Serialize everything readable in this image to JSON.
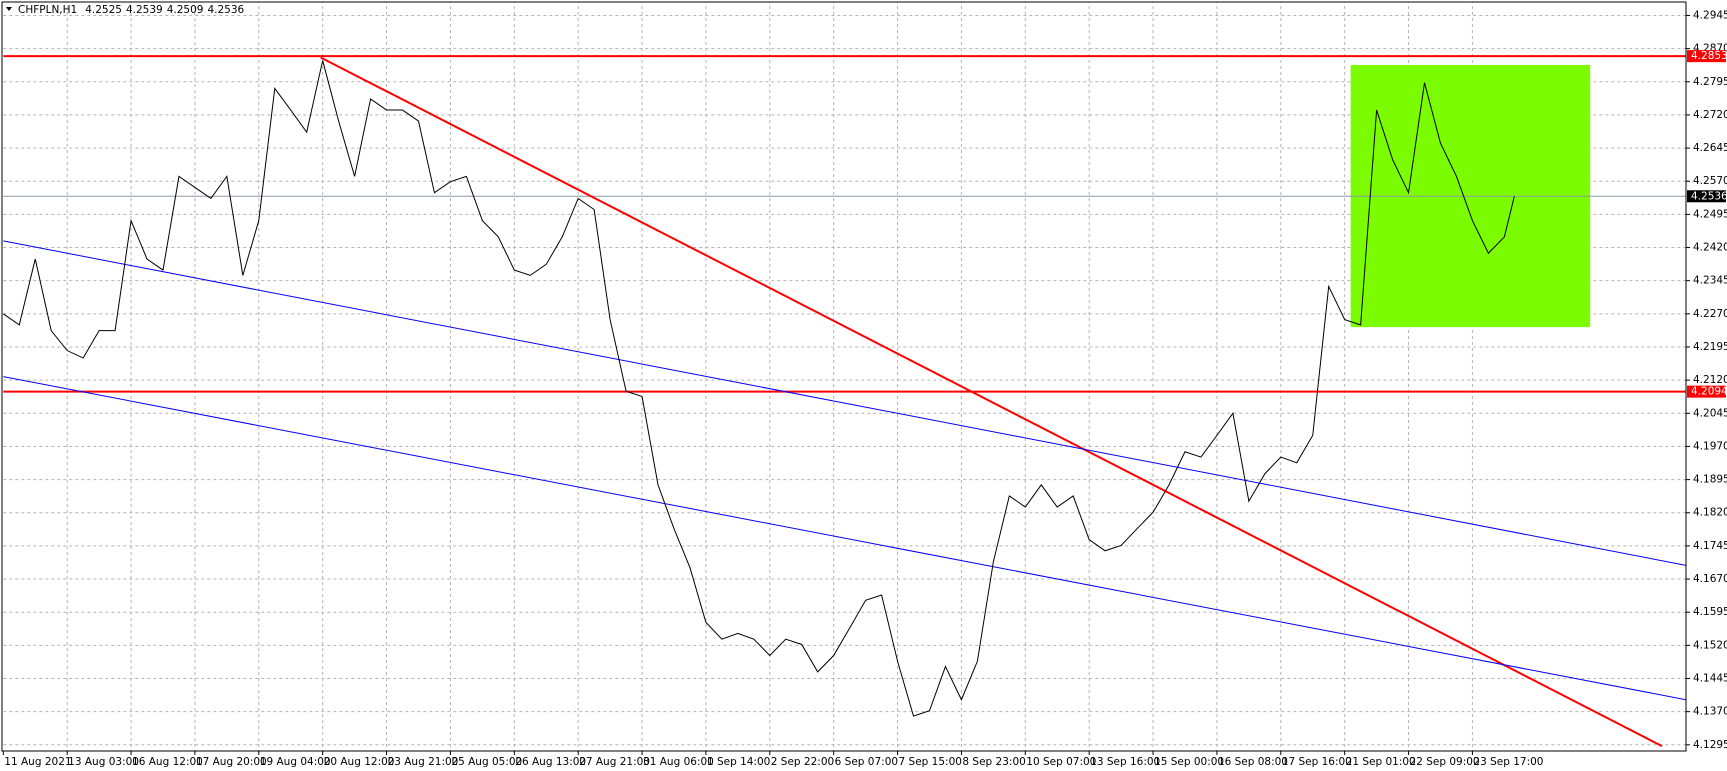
{
  "chart_data": {
    "type": "line",
    "title": "CHFPLN,H1",
    "ohlc": [
      4.2525,
      4.2539,
      4.2509,
      4.2536
    ],
    "x": [
      0,
      8,
      16,
      24,
      32,
      40,
      48,
      56,
      64,
      72,
      80,
      88,
      96,
      104,
      112,
      120,
      128,
      136,
      144,
      152,
      160,
      168,
      176,
      184,
      192,
      200,
      208,
      216,
      224,
      232,
      240,
      248,
      256,
      264,
      272,
      280,
      288,
      296,
      304,
      312,
      320,
      328,
      336,
      344,
      352,
      360,
      368,
      376,
      384,
      392,
      400,
      408,
      416,
      424,
      432,
      440,
      448,
      456,
      464,
      472,
      480,
      488,
      496,
      504,
      512,
      520,
      528,
      536,
      544,
      552,
      560,
      568,
      576,
      584,
      592,
      600,
      608,
      616,
      624,
      632,
      640,
      648,
      656,
      664,
      672,
      680,
      688,
      696,
      704,
      712,
      720,
      728,
      736,
      744,
      752,
      757
    ],
    "values": [
      4.227,
      4.2245,
      4.2394,
      4.2232,
      4.2187,
      4.217,
      4.2232,
      4.2232,
      4.2481,
      4.2394,
      4.2369,
      4.2581,
      4.2556,
      4.2531,
      4.2581,
      4.2357,
      4.2481,
      4.278,
      4.2731,
      4.2681,
      4.2843,
      4.2706,
      4.2581,
      4.2756,
      4.2731,
      4.2731,
      4.2706,
      4.2544,
      4.2569,
      4.2581,
      4.2481,
      4.2444,
      4.2369,
      4.2357,
      4.2382,
      4.2444,
      4.2531,
      4.2506,
      4.2257,
      4.2095,
      4.2083,
      4.1883,
      4.1784,
      4.1696,
      4.1572,
      4.1534,
      4.1547,
      4.1534,
      4.1497,
      4.1534,
      4.1522,
      4.146,
      4.1497,
      4.1559,
      4.1622,
      4.1634,
      4.1484,
      4.136,
      4.1372,
      4.1472,
      4.1397,
      4.1484,
      4.1709,
      4.1858,
      4.1833,
      4.1883,
      4.1833,
      4.1858,
      4.1759,
      4.1734,
      4.1746,
      4.1784,
      4.1821,
      4.1883,
      4.1958,
      4.1946,
      4.1995,
      4.2045,
      4.1846,
      4.1908,
      4.1946,
      4.1933,
      4.1995,
      4.2332,
      4.2257,
      4.2245,
      4.2731,
      4.2619,
      4.2544,
      4.2793,
      4.2656,
      4.2581,
      4.2481,
      4.2407,
      4.2444,
      4.2536
    ],
    "color": "#000000",
    "xlim": [
      0,
      843
    ],
    "ylim": [
      4.1281,
      4.298
    ],
    "grid": true,
    "yticks": [
      4.2945,
      {
        "value": 4.287,
        "label": "4.2870"
      },
      4.2795,
      {
        "value": 4.272,
        "label": "4.2720"
      },
      4.2645,
      {
        "value": 4.257,
        "label": "4.2570"
      },
      4.2495,
      {
        "value": 4.242,
        "label": "4.2420"
      },
      4.2345,
      {
        "value": 4.227,
        "label": "4.2270"
      },
      4.2195,
      {
        "value": 4.212,
        "label": "4.2120"
      },
      4.2045,
      {
        "value": 4.197,
        "label": "4.1970"
      },
      4.1895,
      {
        "value": 4.182,
        "label": "4.1820"
      },
      4.1745,
      {
        "value": 4.167,
        "label": "4.1670"
      },
      4.1595,
      {
        "value": 4.152,
        "label": "4.1520"
      },
      4.1445,
      {
        "value": 4.137,
        "label": "4.1370"
      },
      4.1295
    ],
    "xticks": [
      {
        "value": 0,
        "label": "11 Aug 2021"
      },
      {
        "value": 32,
        "label": "13 Aug 03:00"
      },
      {
        "value": 64,
        "label": "16 Aug 12:00"
      },
      {
        "value": 96,
        "label": "17 Aug 20:00"
      },
      {
        "value": 128,
        "label": "19 Aug 04:00"
      },
      {
        "value": 160,
        "label": "20 Aug 12:00"
      },
      {
        "value": 192,
        "label": "23 Aug 21:00"
      },
      {
        "value": 224,
        "label": "25 Aug 05:00"
      },
      {
        "value": 256,
        "label": "26 Aug 13:00"
      },
      {
        "value": 288,
        "label": "27 Aug 21:00"
      },
      {
        "value": 320,
        "label": "31 Aug 06:00"
      },
      {
        "value": 352,
        "label": "1 Sep 14:00"
      },
      {
        "value": 384,
        "label": "2 Sep 22:00"
      },
      {
        "value": 416,
        "label": "6 Sep 07:00"
      },
      {
        "value": 448,
        "label": "7 Sep 15:00"
      },
      {
        "value": 480,
        "label": "8 Sep 23:00"
      },
      {
        "value": 512,
        "label": "10 Sep 07:00"
      },
      {
        "value": 544,
        "label": "13 Sep 16:00"
      },
      {
        "value": 576,
        "label": "15 Sep 00:00"
      },
      {
        "value": 608,
        "label": "16 Sep 08:00"
      },
      {
        "value": 640,
        "label": "17 Sep 16:00"
      },
      {
        "value": 672,
        "label": "21 Sep 01:00"
      },
      {
        "value": 704,
        "label": "22 Sep 09:00"
      },
      {
        "value": 736,
        "label": "23 Sep 17:00"
      }
    ],
    "hlines": [
      {
        "value": 4.2853,
        "color": "#ff0000"
      },
      {
        "value": 4.2094,
        "color": "#ff0000"
      }
    ],
    "current_price": {
      "value": 4.2536,
      "color": "#000000"
    },
    "trendlines": [
      {
        "color": "#ff0000",
        "x": [
          159,
          831
        ],
        "y": [
          4.285,
          4.1292
        ]
      },
      {
        "color": "#0000ff",
        "x": [
          0,
          843
        ],
        "y": [
          4.2435,
          4.1701
        ]
      },
      {
        "color": "#0000ff",
        "x": [
          0,
          843
        ],
        "y": [
          4.2128,
          4.1397
        ]
      }
    ],
    "rectangle": {
      "color": "#7cfc00",
      "x": [
        675,
        795
      ],
      "y": [
        4.2833,
        4.224
      ]
    }
  }
}
